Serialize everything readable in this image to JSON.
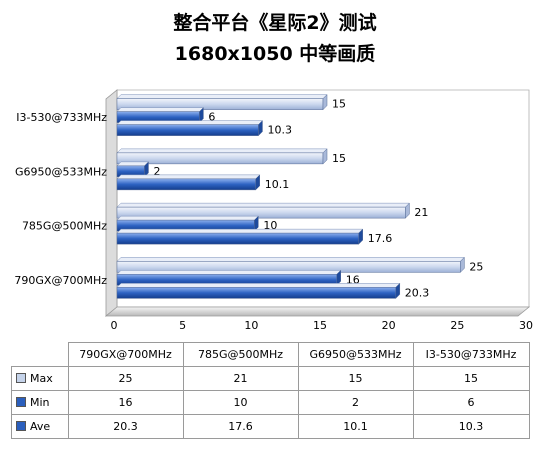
{
  "chart_data": {
    "type": "bar",
    "orientation": "horizontal",
    "title": "整合平台《星际2》测试",
    "subtitle": "1680x1050 中等画质",
    "categories": [
      "790GX@700MHz",
      "785G@500MHz",
      "G6950@533MHz",
      "I3-530@733MHz"
    ],
    "series": [
      {
        "name": "Max",
        "color": "#c5d3ea",
        "values": [
          25,
          21,
          15,
          15
        ]
      },
      {
        "name": "Min",
        "color": "#2b5fbd",
        "values": [
          16,
          10,
          2,
          6
        ]
      },
      {
        "name": "Ave",
        "color": "#2b5fbd",
        "values": [
          20.3,
          17.6,
          10.1,
          10.3
        ]
      }
    ],
    "xlim": [
      0,
      30
    ],
    "xticks": [
      0,
      5,
      10,
      15,
      20,
      25,
      30
    ],
    "grid": false,
    "data_table": true,
    "legend": "data-table"
  }
}
